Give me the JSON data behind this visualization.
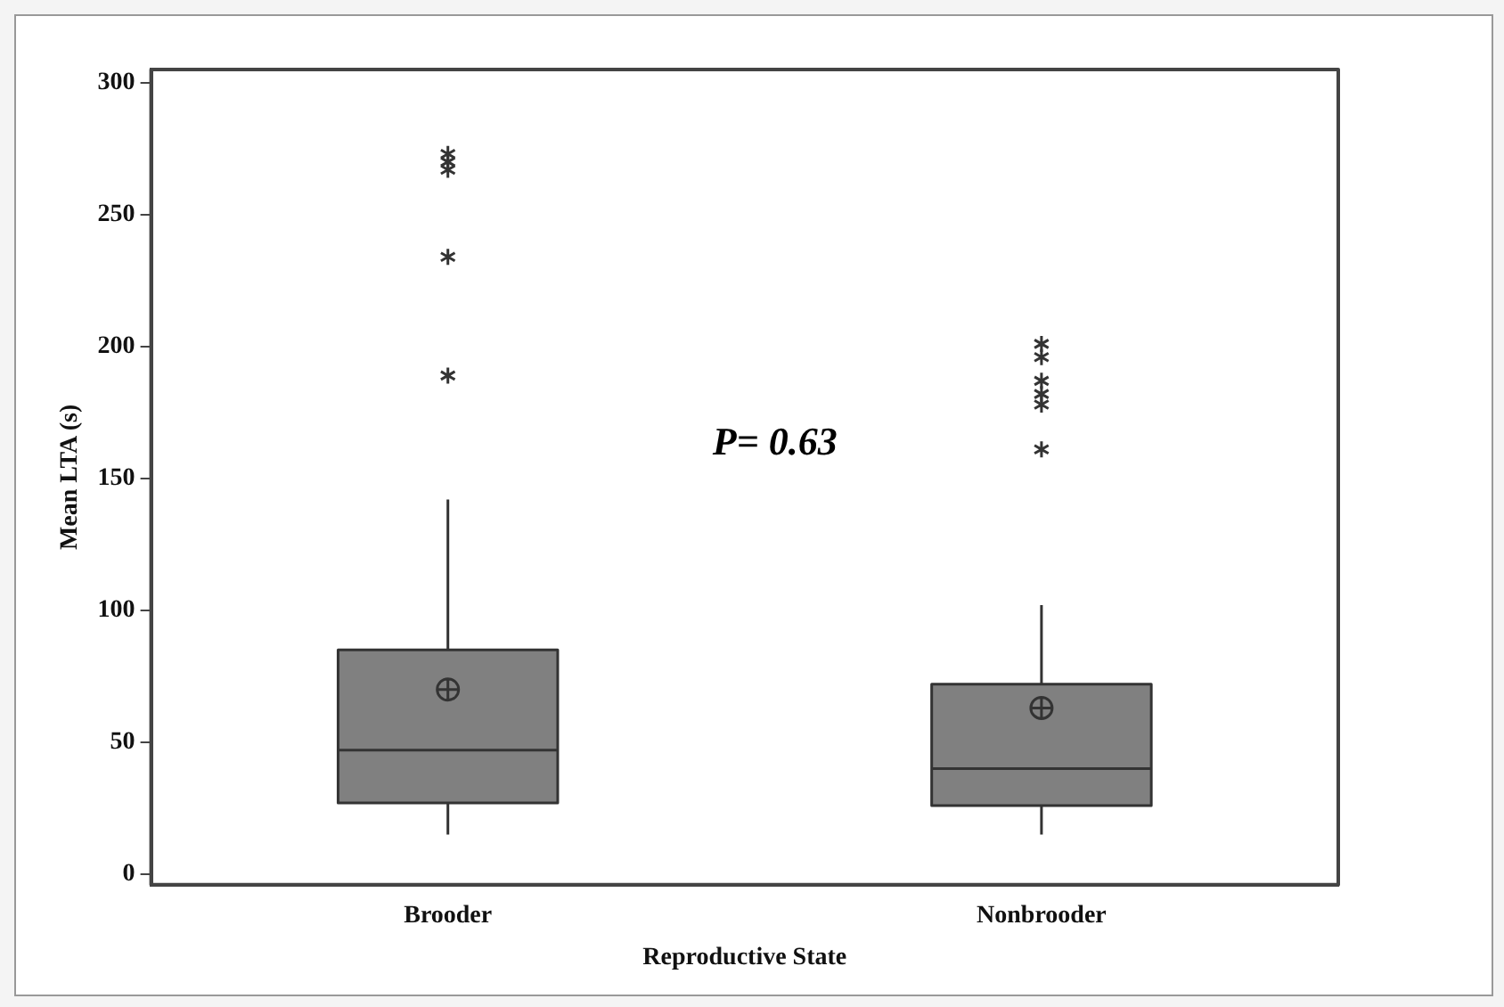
{
  "chart_data": {
    "type": "box",
    "xlabel": "Reproductive State",
    "ylabel": "Mean LTA (s)",
    "categories": [
      "Brooder",
      "Nonbrooder"
    ],
    "color": "#808080",
    "boxes": [
      {
        "low": 15,
        "q1": 27,
        "median": 47,
        "q3": 85,
        "high": 142,
        "mean": 70,
        "outliers": [
          189,
          234,
          267,
          270,
          273
        ]
      },
      {
        "low": 15,
        "q1": 26,
        "median": 40,
        "q3": 72,
        "high": 102,
        "mean": 63,
        "outliers": [
          161,
          178,
          182,
          187,
          196,
          201
        ]
      }
    ],
    "ylim": [
      -4,
      305
    ],
    "yticks": [
      0,
      50,
      100,
      150,
      200,
      250,
      300
    ],
    "grid": false,
    "legend": false,
    "annotations": [
      "P= 0.63"
    ]
  }
}
